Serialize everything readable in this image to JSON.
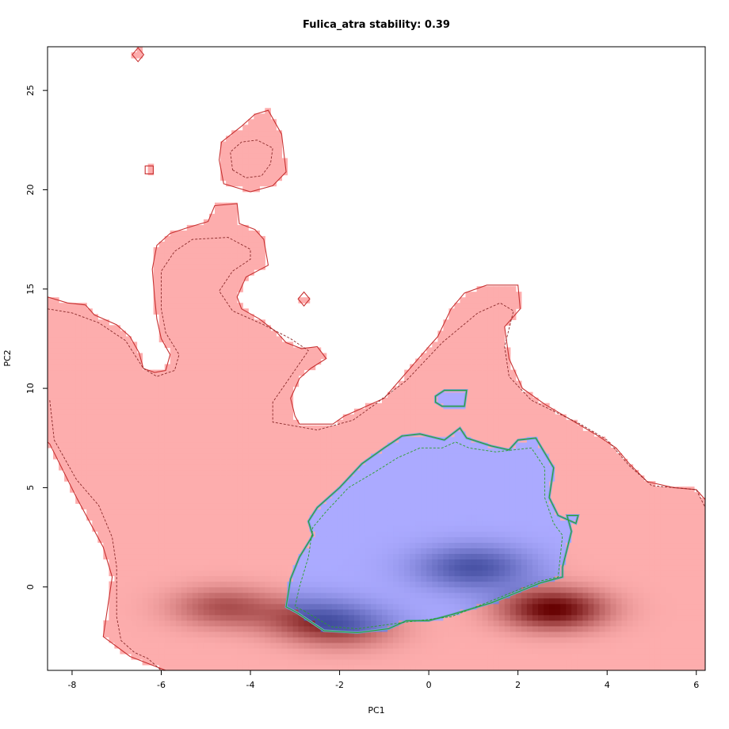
{
  "chart_data": {
    "type": "heatmap",
    "title": "Fulica_atra stability: 0.39",
    "xlabel": "PC1",
    "ylabel": "PC2",
    "xlim": [
      -8.55,
      6.2
    ],
    "ylim": [
      -4.2,
      27.2
    ],
    "x_ticks": [
      -8,
      -6,
      -4,
      -2,
      0,
      2,
      4,
      6
    ],
    "y_ticks": [
      0,
      5,
      10,
      15,
      20,
      25
    ],
    "colors": {
      "native_area": "#fdadad",
      "native_density_peak": "#650000",
      "overlap_area": "#abaaff",
      "overlap_density_peak": "#2d3a8c",
      "native_contour": "#c83232",
      "overlap_contour": "#2ca02c"
    },
    "density_peaks": [
      {
        "x": 2.8,
        "y": -1.1,
        "weight": 1.0
      },
      {
        "x": -4.6,
        "y": -1.0,
        "weight": 0.55
      },
      {
        "x": -1.8,
        "y": -2.1,
        "weight": 0.4
      },
      {
        "x": 1.0,
        "y": 1.0,
        "weight": 0.75
      },
      {
        "x": -2.6,
        "y": -1.6,
        "weight": 0.55
      }
    ],
    "regions": {
      "native_main": [
        [
          -8.55,
          14.6
        ],
        [
          -8.1,
          14.3
        ],
        [
          -7.7,
          14.2
        ],
        [
          -7.5,
          13.7
        ],
        [
          -7.0,
          13.2
        ],
        [
          -6.7,
          12.6
        ],
        [
          -6.5,
          11.8
        ],
        [
          -6.4,
          11.0
        ],
        [
          -6.15,
          10.8
        ],
        [
          -5.9,
          10.9
        ],
        [
          -5.8,
          11.7
        ],
        [
          -6.0,
          12.5
        ],
        [
          -6.1,
          13.5
        ],
        [
          -6.15,
          14.6
        ],
        [
          -6.2,
          16.0
        ],
        [
          -6.1,
          17.2
        ],
        [
          -5.8,
          17.8
        ],
        [
          -5.4,
          18.1
        ],
        [
          -4.95,
          18.4
        ],
        [
          -4.8,
          19.2
        ],
        [
          -4.3,
          19.3
        ],
        [
          -4.25,
          18.3
        ],
        [
          -3.9,
          18.0
        ],
        [
          -3.7,
          17.5
        ],
        [
          -3.6,
          16.2
        ],
        [
          -4.1,
          15.6
        ],
        [
          -4.3,
          14.6
        ],
        [
          -4.2,
          14.0
        ],
        [
          -3.8,
          13.5
        ],
        [
          -3.4,
          12.8
        ],
        [
          -3.2,
          12.3
        ],
        [
          -2.85,
          12.0
        ],
        [
          -2.5,
          12.1
        ],
        [
          -2.3,
          11.5
        ],
        [
          -2.65,
          11.0
        ],
        [
          -2.9,
          10.5
        ],
        [
          -3.1,
          9.5
        ],
        [
          -3.0,
          8.6
        ],
        [
          -2.9,
          8.2
        ],
        [
          -2.15,
          8.2
        ],
        [
          -1.9,
          8.6
        ],
        [
          -1.5,
          9.0
        ],
        [
          -1.0,
          9.5
        ],
        [
          -0.5,
          10.8
        ],
        [
          0.0,
          12.1
        ],
        [
          0.2,
          12.6
        ],
        [
          0.5,
          14.0
        ],
        [
          0.8,
          14.8
        ],
        [
          1.3,
          15.2
        ],
        [
          2.0,
          15.2
        ],
        [
          2.05,
          14.0
        ],
        [
          1.7,
          13.1
        ],
        [
          1.8,
          11.5
        ],
        [
          2.1,
          10.0
        ],
        [
          2.6,
          9.2
        ],
        [
          3.2,
          8.4
        ],
        [
          3.8,
          7.6
        ],
        [
          4.2,
          7.0
        ],
        [
          4.5,
          6.2
        ],
        [
          4.9,
          5.3
        ],
        [
          5.5,
          5.0
        ],
        [
          6.0,
          4.9
        ],
        [
          6.2,
          4.4
        ],
        [
          6.2,
          -4.2
        ],
        [
          -5.9,
          -4.2
        ],
        [
          -6.7,
          -3.5
        ],
        [
          -7.3,
          -2.5
        ],
        [
          -7.1,
          0.5
        ],
        [
          -7.3,
          2.0
        ],
        [
          -7.9,
          4.5
        ],
        [
          -8.5,
          7.2
        ],
        [
          -8.55,
          7.3
        ]
      ],
      "native_island_1": [
        [
          -4.6,
          20.3
        ],
        [
          -4.0,
          19.9
        ],
        [
          -3.5,
          20.2
        ],
        [
          -3.2,
          20.9
        ],
        [
          -3.3,
          22.8
        ],
        [
          -3.6,
          24.0
        ],
        [
          -3.9,
          23.8
        ],
        [
          -4.2,
          23.2
        ],
        [
          -4.65,
          22.4
        ],
        [
          -4.7,
          21.5
        ]
      ],
      "native_island_2": [
        [
          -6.65,
          26.8
        ],
        [
          -6.52,
          26.45
        ],
        [
          -6.39,
          26.8
        ],
        [
          -6.52,
          27.15
        ]
      ],
      "native_island_3": [
        [
          -6.36,
          20.8
        ],
        [
          -6.18,
          20.8
        ],
        [
          -6.18,
          21.2
        ],
        [
          -6.36,
          21.2
        ]
      ],
      "native_island_4": [
        [
          -2.93,
          14.5
        ],
        [
          -2.8,
          14.15
        ],
        [
          -2.67,
          14.5
        ],
        [
          -2.8,
          14.85
        ]
      ],
      "overlap_main": [
        [
          -2.95,
          -1.3
        ],
        [
          -2.35,
          -2.2
        ],
        [
          -1.6,
          -2.3
        ],
        [
          -0.9,
          -2.1
        ],
        [
          -0.5,
          -1.7
        ],
        [
          0.0,
          -1.7
        ],
        [
          0.5,
          -1.4
        ],
        [
          1.4,
          -0.8
        ],
        [
          2.5,
          0.2
        ],
        [
          3.0,
          0.5
        ],
        [
          3.0,
          1.0
        ],
        [
          3.2,
          2.8
        ],
        [
          3.1,
          3.6
        ],
        [
          3.35,
          3.6
        ],
        [
          3.3,
          3.2
        ],
        [
          2.9,
          3.6
        ],
        [
          2.7,
          4.5
        ],
        [
          2.8,
          6.0
        ],
        [
          2.4,
          7.5
        ],
        [
          2.0,
          7.4
        ],
        [
          1.8,
          6.9
        ],
        [
          1.4,
          7.1
        ],
        [
          0.85,
          7.5
        ],
        [
          0.7,
          8.0
        ],
        [
          0.35,
          7.4
        ],
        [
          -0.2,
          7.7
        ],
        [
          -0.6,
          7.6
        ],
        [
          -1.0,
          7.0
        ],
        [
          -1.5,
          6.2
        ],
        [
          -2.0,
          5.0
        ],
        [
          -2.5,
          4.0
        ],
        [
          -2.7,
          3.3
        ],
        [
          -2.6,
          2.6
        ],
        [
          -2.9,
          1.5
        ],
        [
          -3.1,
          0.4
        ],
        [
          -3.2,
          -1.0
        ]
      ],
      "overlap_island": [
        [
          0.15,
          9.3
        ],
        [
          0.3,
          9.1
        ],
        [
          0.8,
          9.1
        ],
        [
          0.85,
          9.9
        ],
        [
          0.35,
          9.9
        ],
        [
          0.15,
          9.6
        ]
      ]
    },
    "dashed_contours": {
      "native_outer": [
        [
          -8.55,
          14.0
        ],
        [
          -8.0,
          13.8
        ],
        [
          -7.4,
          13.3
        ],
        [
          -6.8,
          12.4
        ],
        [
          -6.4,
          11.0
        ],
        [
          -6.1,
          10.6
        ],
        [
          -5.7,
          10.9
        ],
        [
          -5.6,
          11.7
        ],
        [
          -5.9,
          12.8
        ],
        [
          -6.0,
          14.0
        ],
        [
          -6.0,
          15.9
        ],
        [
          -5.7,
          16.9
        ],
        [
          -5.3,
          17.5
        ],
        [
          -4.5,
          17.6
        ],
        [
          -4.0,
          17.0
        ],
        [
          -4.0,
          16.5
        ],
        [
          -4.4,
          15.9
        ],
        [
          -4.7,
          14.9
        ],
        [
          -4.4,
          13.9
        ],
        [
          -3.7,
          13.2
        ],
        [
          -3.1,
          12.5
        ],
        [
          -2.7,
          11.9
        ],
        [
          -3.1,
          10.6
        ],
        [
          -3.5,
          9.3
        ],
        [
          -3.5,
          8.3
        ],
        [
          -2.5,
          7.9
        ],
        [
          -1.7,
          8.4
        ],
        [
          -1.2,
          9.2
        ],
        [
          -0.5,
          10.4
        ],
        [
          0.3,
          12.3
        ],
        [
          1.1,
          13.8
        ],
        [
          1.6,
          14.3
        ],
        [
          1.9,
          13.9
        ],
        [
          1.7,
          12.1
        ],
        [
          1.8,
          10.6
        ],
        [
          2.3,
          9.4
        ],
        [
          3.4,
          8.2
        ],
        [
          4.0,
          7.4
        ],
        [
          4.5,
          6.1
        ],
        [
          5.0,
          5.1
        ],
        [
          6.0,
          4.9
        ],
        [
          6.2,
          4.0
        ]
      ],
      "native_lower_left": [
        [
          -8.5,
          9.4
        ],
        [
          -8.4,
          7.4
        ],
        [
          -7.9,
          5.4
        ],
        [
          -7.4,
          4.1
        ],
        [
          -7.1,
          2.5
        ],
        [
          -7.0,
          1.0
        ],
        [
          -7.0,
          -1.5
        ],
        [
          -6.9,
          -2.7
        ],
        [
          -6.6,
          -3.3
        ],
        [
          -6.3,
          -3.6
        ],
        [
          -6.0,
          -4.2
        ]
      ],
      "native_island_1": [
        [
          -4.4,
          21.0
        ],
        [
          -4.1,
          20.6
        ],
        [
          -3.75,
          20.7
        ],
        [
          -3.55,
          21.3
        ],
        [
          -3.5,
          22.1
        ],
        [
          -3.85,
          22.5
        ],
        [
          -4.2,
          22.4
        ],
        [
          -4.45,
          21.9
        ]
      ],
      "overlap_inner": [
        [
          -2.8,
          -1.2
        ],
        [
          -2.2,
          -2.0
        ],
        [
          -1.6,
          -2.1
        ],
        [
          -0.6,
          -1.8
        ],
        [
          0.5,
          -1.5
        ],
        [
          1.4,
          -0.7
        ],
        [
          2.5,
          0.3
        ],
        [
          2.9,
          0.5
        ],
        [
          3.0,
          2.6
        ],
        [
          2.8,
          3.2
        ],
        [
          2.6,
          4.5
        ],
        [
          2.6,
          6.0
        ],
        [
          2.3,
          7.0
        ],
        [
          1.9,
          6.9
        ],
        [
          1.5,
          6.8
        ],
        [
          0.9,
          7.0
        ],
        [
          0.6,
          7.3
        ],
        [
          0.3,
          7.0
        ],
        [
          -0.2,
          7.0
        ],
        [
          -0.7,
          6.5
        ],
        [
          -1.2,
          5.8
        ],
        [
          -1.8,
          5.0
        ],
        [
          -2.3,
          3.8
        ],
        [
          -2.6,
          3.0
        ],
        [
          -2.7,
          1.5
        ],
        [
          -2.9,
          0.0
        ],
        [
          -3.0,
          -1.0
        ]
      ]
    }
  }
}
